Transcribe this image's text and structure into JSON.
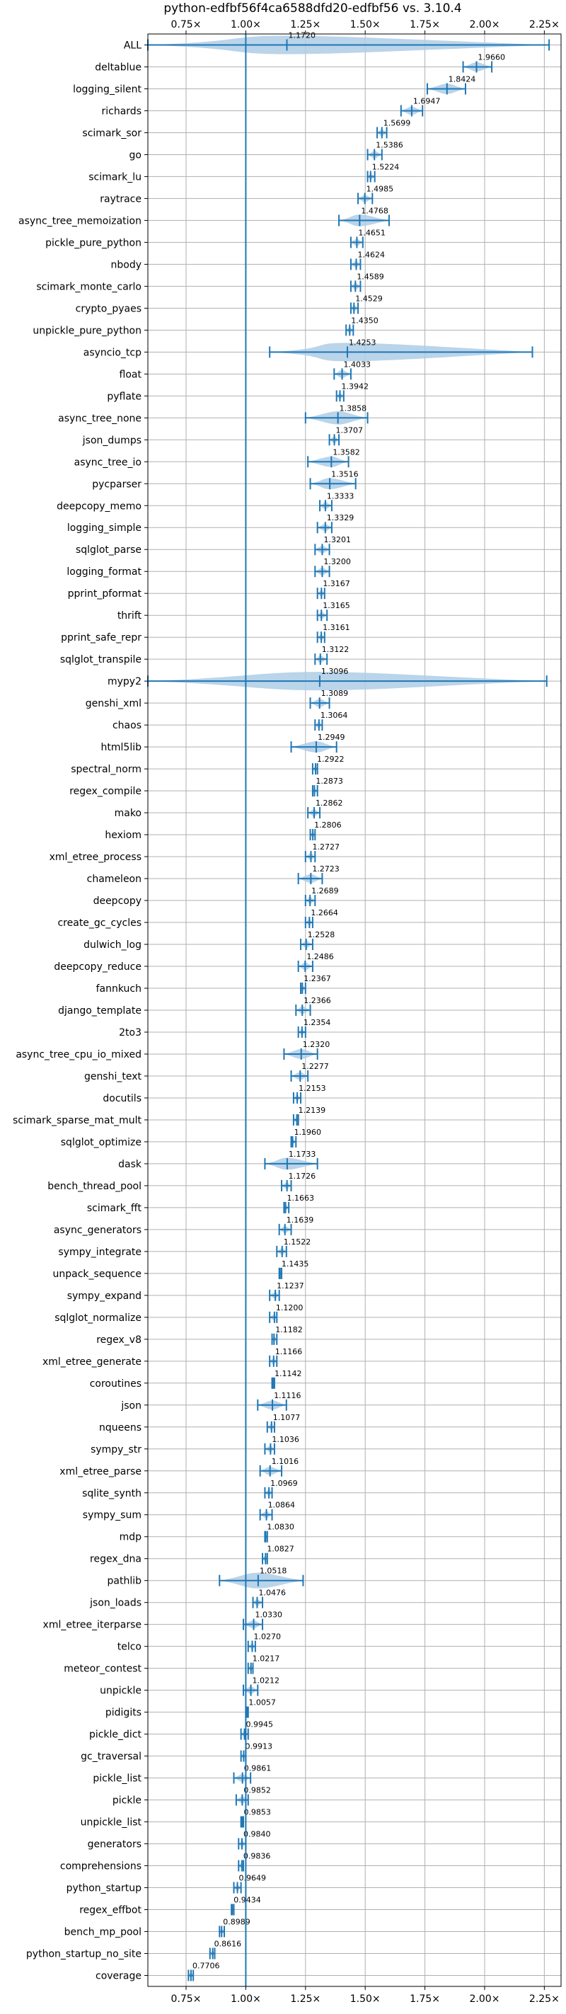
{
  "chart_data": {
    "type": "violin",
    "title": "python-edfbf56f4ca6588dfd20-edfbf56 vs. 3.10.4",
    "xlabel": "",
    "ylabel": "",
    "xlim": [
      0.59,
      2.32
    ],
    "x_ticks": [
      0.75,
      1.0,
      1.25,
      1.5,
      1.75,
      2.0,
      2.25
    ],
    "x_tick_labels": [
      "0.75×",
      "1.00×",
      "1.25×",
      "1.50×",
      "1.75×",
      "2.00×",
      "2.25×"
    ],
    "reference_line": 1.0,
    "grid": true,
    "colors": {
      "violin": "#aecde6",
      "line": "#1f77b4",
      "grid": "#b0b0b0"
    },
    "benchmarks": [
      {
        "name": "ALL",
        "mean": 1.172,
        "min": 0.59,
        "max": 2.27
      },
      {
        "name": "deltablue",
        "mean": 1.966,
        "min": 1.91,
        "max": 2.03
      },
      {
        "name": "logging_silent",
        "mean": 1.8424,
        "min": 1.76,
        "max": 1.92
      },
      {
        "name": "richards",
        "mean": 1.6947,
        "min": 1.65,
        "max": 1.74
      },
      {
        "name": "scimark_sor",
        "mean": 1.5699,
        "min": 1.55,
        "max": 1.59
      },
      {
        "name": "go",
        "mean": 1.5386,
        "min": 1.51,
        "max": 1.57
      },
      {
        "name": "scimark_lu",
        "mean": 1.5224,
        "min": 1.51,
        "max": 1.54
      },
      {
        "name": "raytrace",
        "mean": 1.4985,
        "min": 1.47,
        "max": 1.53
      },
      {
        "name": "async_tree_memoization",
        "mean": 1.4768,
        "min": 1.39,
        "max": 1.6
      },
      {
        "name": "pickle_pure_python",
        "mean": 1.4651,
        "min": 1.44,
        "max": 1.49
      },
      {
        "name": "nbody",
        "mean": 1.4624,
        "min": 1.44,
        "max": 1.48
      },
      {
        "name": "scimark_monte_carlo",
        "mean": 1.4589,
        "min": 1.44,
        "max": 1.48
      },
      {
        "name": "crypto_pyaes",
        "mean": 1.4529,
        "min": 1.44,
        "max": 1.47
      },
      {
        "name": "unpickle_pure_python",
        "mean": 1.435,
        "min": 1.42,
        "max": 1.45
      },
      {
        "name": "asyncio_tcp",
        "mean": 1.4253,
        "min": 1.1,
        "max": 2.2
      },
      {
        "name": "float",
        "mean": 1.4033,
        "min": 1.37,
        "max": 1.44
      },
      {
        "name": "pyflate",
        "mean": 1.3942,
        "min": 1.38,
        "max": 1.41
      },
      {
        "name": "async_tree_none",
        "mean": 1.3858,
        "min": 1.25,
        "max": 1.51
      },
      {
        "name": "json_dumps",
        "mean": 1.3707,
        "min": 1.35,
        "max": 1.39
      },
      {
        "name": "async_tree_io",
        "mean": 1.3582,
        "min": 1.26,
        "max": 1.43
      },
      {
        "name": "pycparser",
        "mean": 1.3516,
        "min": 1.27,
        "max": 1.46
      },
      {
        "name": "deepcopy_memo",
        "mean": 1.3333,
        "min": 1.31,
        "max": 1.36
      },
      {
        "name": "logging_simple",
        "mean": 1.3329,
        "min": 1.3,
        "max": 1.36
      },
      {
        "name": "sqlglot_parse",
        "mean": 1.3201,
        "min": 1.29,
        "max": 1.35
      },
      {
        "name": "logging_format",
        "mean": 1.32,
        "min": 1.29,
        "max": 1.35
      },
      {
        "name": "pprint_pformat",
        "mean": 1.3167,
        "min": 1.3,
        "max": 1.33
      },
      {
        "name": "thrift",
        "mean": 1.3165,
        "min": 1.3,
        "max": 1.34
      },
      {
        "name": "pprint_safe_repr",
        "mean": 1.3161,
        "min": 1.3,
        "max": 1.33
      },
      {
        "name": "sqlglot_transpile",
        "mean": 1.3122,
        "min": 1.29,
        "max": 1.34
      },
      {
        "name": "mypy2",
        "mean": 1.3096,
        "min": 0.59,
        "max": 2.26
      },
      {
        "name": "genshi_xml",
        "mean": 1.3089,
        "min": 1.27,
        "max": 1.35
      },
      {
        "name": "chaos",
        "mean": 1.3064,
        "min": 1.29,
        "max": 1.32
      },
      {
        "name": "html5lib",
        "mean": 1.2949,
        "min": 1.19,
        "max": 1.38
      },
      {
        "name": "spectral_norm",
        "mean": 1.2922,
        "min": 1.28,
        "max": 1.3
      },
      {
        "name": "regex_compile",
        "mean": 1.2873,
        "min": 1.28,
        "max": 1.3
      },
      {
        "name": "mako",
        "mean": 1.2862,
        "min": 1.26,
        "max": 1.31
      },
      {
        "name": "hexiom",
        "mean": 1.2806,
        "min": 1.27,
        "max": 1.29
      },
      {
        "name": "xml_etree_process",
        "mean": 1.2727,
        "min": 1.25,
        "max": 1.29
      },
      {
        "name": "chameleon",
        "mean": 1.2723,
        "min": 1.22,
        "max": 1.32
      },
      {
        "name": "deepcopy",
        "mean": 1.2689,
        "min": 1.25,
        "max": 1.29
      },
      {
        "name": "create_gc_cycles",
        "mean": 1.2664,
        "min": 1.25,
        "max": 1.28
      },
      {
        "name": "dulwich_log",
        "mean": 1.2528,
        "min": 1.23,
        "max": 1.28
      },
      {
        "name": "deepcopy_reduce",
        "mean": 1.2486,
        "min": 1.22,
        "max": 1.28
      },
      {
        "name": "fannkuch",
        "mean": 1.2367,
        "min": 1.23,
        "max": 1.25
      },
      {
        "name": "django_template",
        "mean": 1.2366,
        "min": 1.21,
        "max": 1.27
      },
      {
        "name": "2to3",
        "mean": 1.2354,
        "min": 1.22,
        "max": 1.25
      },
      {
        "name": "async_tree_cpu_io_mixed",
        "mean": 1.232,
        "min": 1.16,
        "max": 1.3
      },
      {
        "name": "genshi_text",
        "mean": 1.2277,
        "min": 1.19,
        "max": 1.26
      },
      {
        "name": "docutils",
        "mean": 1.2153,
        "min": 1.2,
        "max": 1.23
      },
      {
        "name": "scimark_sparse_mat_mult",
        "mean": 1.2139,
        "min": 1.2,
        "max": 1.22
      },
      {
        "name": "sqlglot_optimize",
        "mean": 1.196,
        "min": 1.19,
        "max": 1.21
      },
      {
        "name": "dask",
        "mean": 1.1733,
        "min": 1.08,
        "max": 1.3
      },
      {
        "name": "bench_thread_pool",
        "mean": 1.1726,
        "min": 1.15,
        "max": 1.19
      },
      {
        "name": "scimark_fft",
        "mean": 1.1663,
        "min": 1.16,
        "max": 1.18
      },
      {
        "name": "async_generators",
        "mean": 1.1639,
        "min": 1.14,
        "max": 1.19
      },
      {
        "name": "sympy_integrate",
        "mean": 1.1522,
        "min": 1.13,
        "max": 1.17
      },
      {
        "name": "unpack_sequence",
        "mean": 1.1435,
        "min": 1.14,
        "max": 1.15
      },
      {
        "name": "sympy_expand",
        "mean": 1.1237,
        "min": 1.1,
        "max": 1.14
      },
      {
        "name": "sqlglot_normalize",
        "mean": 1.12,
        "min": 1.1,
        "max": 1.13
      },
      {
        "name": "regex_v8",
        "mean": 1.1182,
        "min": 1.11,
        "max": 1.13
      },
      {
        "name": "xml_etree_generate",
        "mean": 1.1166,
        "min": 1.1,
        "max": 1.13
      },
      {
        "name": "coroutines",
        "mean": 1.1142,
        "min": 1.11,
        "max": 1.12
      },
      {
        "name": "json",
        "mean": 1.1116,
        "min": 1.05,
        "max": 1.17
      },
      {
        "name": "nqueens",
        "mean": 1.1077,
        "min": 1.09,
        "max": 1.12
      },
      {
        "name": "sympy_str",
        "mean": 1.1036,
        "min": 1.08,
        "max": 1.12
      },
      {
        "name": "xml_etree_parse",
        "mean": 1.1016,
        "min": 1.06,
        "max": 1.15
      },
      {
        "name": "sqlite_synth",
        "mean": 1.0969,
        "min": 1.08,
        "max": 1.11
      },
      {
        "name": "sympy_sum",
        "mean": 1.0864,
        "min": 1.06,
        "max": 1.11
      },
      {
        "name": "mdp",
        "mean": 1.083,
        "min": 1.08,
        "max": 1.09
      },
      {
        "name": "regex_dna",
        "mean": 1.0827,
        "min": 1.07,
        "max": 1.09
      },
      {
        "name": "pathlib",
        "mean": 1.0518,
        "min": 0.89,
        "max": 1.24
      },
      {
        "name": "json_loads",
        "mean": 1.0476,
        "min": 1.03,
        "max": 1.07
      },
      {
        "name": "xml_etree_iterparse",
        "mean": 1.033,
        "min": 0.99,
        "max": 1.07
      },
      {
        "name": "telco",
        "mean": 1.027,
        "min": 1.01,
        "max": 1.04
      },
      {
        "name": "meteor_contest",
        "mean": 1.0217,
        "min": 1.01,
        "max": 1.03
      },
      {
        "name": "unpickle",
        "mean": 1.0212,
        "min": 0.99,
        "max": 1.05
      },
      {
        "name": "pidigits",
        "mean": 1.0057,
        "min": 1.0,
        "max": 1.01
      },
      {
        "name": "pickle_dict",
        "mean": 0.9945,
        "min": 0.98,
        "max": 1.01
      },
      {
        "name": "gc_traversal",
        "mean": 0.9913,
        "min": 0.98,
        "max": 1.0
      },
      {
        "name": "pickle_list",
        "mean": 0.9861,
        "min": 0.95,
        "max": 1.02
      },
      {
        "name": "pickle",
        "mean": 0.9852,
        "min": 0.96,
        "max": 1.01
      },
      {
        "name": "unpickle_list",
        "mean": 0.9853,
        "min": 0.98,
        "max": 0.99
      },
      {
        "name": "generators",
        "mean": 0.984,
        "min": 0.97,
        "max": 1.0
      },
      {
        "name": "comprehensions",
        "mean": 0.9836,
        "min": 0.97,
        "max": 0.99
      },
      {
        "name": "python_startup",
        "mean": 0.9649,
        "min": 0.95,
        "max": 0.98
      },
      {
        "name": "regex_effbot",
        "mean": 0.9434,
        "min": 0.94,
        "max": 0.95
      },
      {
        "name": "bench_mp_pool",
        "mean": 0.8989,
        "min": 0.89,
        "max": 0.91
      },
      {
        "name": "python_startup_no_site",
        "mean": 0.8616,
        "min": 0.85,
        "max": 0.87
      },
      {
        "name": "coverage",
        "mean": 0.7706,
        "min": 0.76,
        "max": 0.78
      }
    ]
  }
}
